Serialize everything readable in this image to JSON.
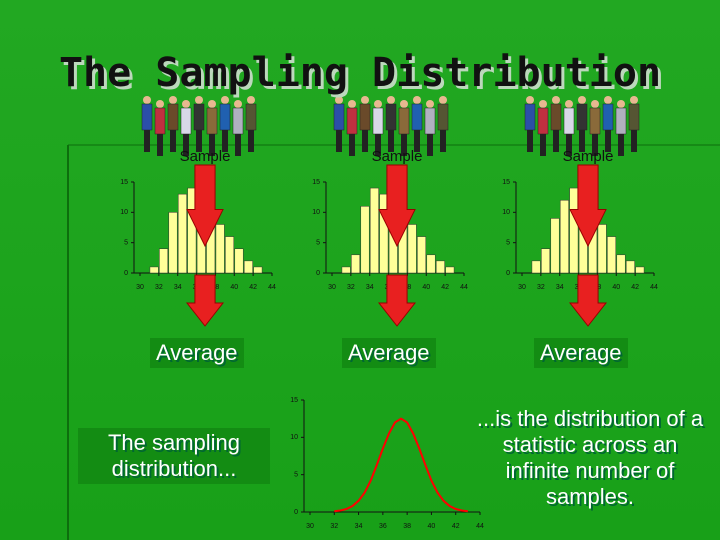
{
  "title": "The Sampling Distribution",
  "samples": [
    "Sample",
    "Sample",
    "Sample"
  ],
  "averages": [
    "Average",
    "Average",
    "Average"
  ],
  "left_note": "The sampling distribution...",
  "right_note": "...is the distribution of a statistic across an infinite number of samples.",
  "chart_data": [
    {
      "type": "histogram",
      "bins": [
        31,
        32,
        33,
        34,
        35,
        36,
        37,
        38,
        39,
        40,
        41,
        42,
        43
      ],
      "values": [
        1,
        4,
        10,
        13,
        14,
        11,
        10,
        8,
        6,
        4,
        2,
        1
      ],
      "color": "#ffff99",
      "xlim": [
        30,
        44
      ],
      "ylim": [
        0,
        15
      ],
      "xticks": [
        30,
        32,
        34,
        36,
        38,
        40,
        42,
        44
      ],
      "yticks": [
        0,
        5,
        10,
        15
      ]
    },
    {
      "type": "histogram",
      "bins": [
        31,
        32,
        33,
        34,
        35,
        36,
        37,
        38,
        39,
        40,
        41,
        42,
        43
      ],
      "values": [
        1,
        3,
        11,
        14,
        13,
        12,
        10,
        8,
        6,
        3,
        2,
        1
      ],
      "color": "#ffff99",
      "xlim": [
        30,
        44
      ],
      "ylim": [
        0,
        15
      ],
      "xticks": [
        30,
        32,
        34,
        36,
        38,
        40,
        42,
        44
      ],
      "yticks": [
        0,
        5,
        10,
        15
      ]
    },
    {
      "type": "histogram",
      "bins": [
        31,
        32,
        33,
        34,
        35,
        36,
        37,
        38,
        39,
        40,
        41,
        42,
        43
      ],
      "values": [
        2,
        4,
        9,
        12,
        14,
        11,
        9,
        8,
        6,
        3,
        2,
        1
      ],
      "color": "#ffff99",
      "xlim": [
        30,
        44
      ],
      "ylim": [
        0,
        15
      ],
      "xticks": [
        30,
        32,
        34,
        36,
        38,
        40,
        42,
        44
      ],
      "yticks": [
        0,
        5,
        10,
        15
      ]
    },
    {
      "type": "line",
      "x": [
        32,
        32.5,
        33,
        33.5,
        34,
        34.5,
        35,
        35.5,
        36,
        36.5,
        37,
        37.5,
        38,
        38.5,
        39,
        39.5,
        40,
        40.5,
        41,
        41.5,
        42,
        42.5,
        43
      ],
      "values": [
        0.1,
        0.2,
        0.4,
        0.8,
        1.5,
        2.6,
        4.2,
        6.3,
        8.5,
        10.5,
        12.0,
        12.5,
        12.0,
        10.5,
        8.5,
        6.3,
        4.2,
        2.6,
        1.5,
        0.8,
        0.4,
        0.2,
        0.1
      ],
      "color": "#ff0000",
      "xlim": [
        30,
        44
      ],
      "ylim": [
        0,
        15
      ],
      "xticks": [
        30,
        32,
        34,
        36,
        38,
        40,
        42,
        44
      ],
      "yticks": [
        0,
        5,
        10,
        15
      ]
    }
  ]
}
